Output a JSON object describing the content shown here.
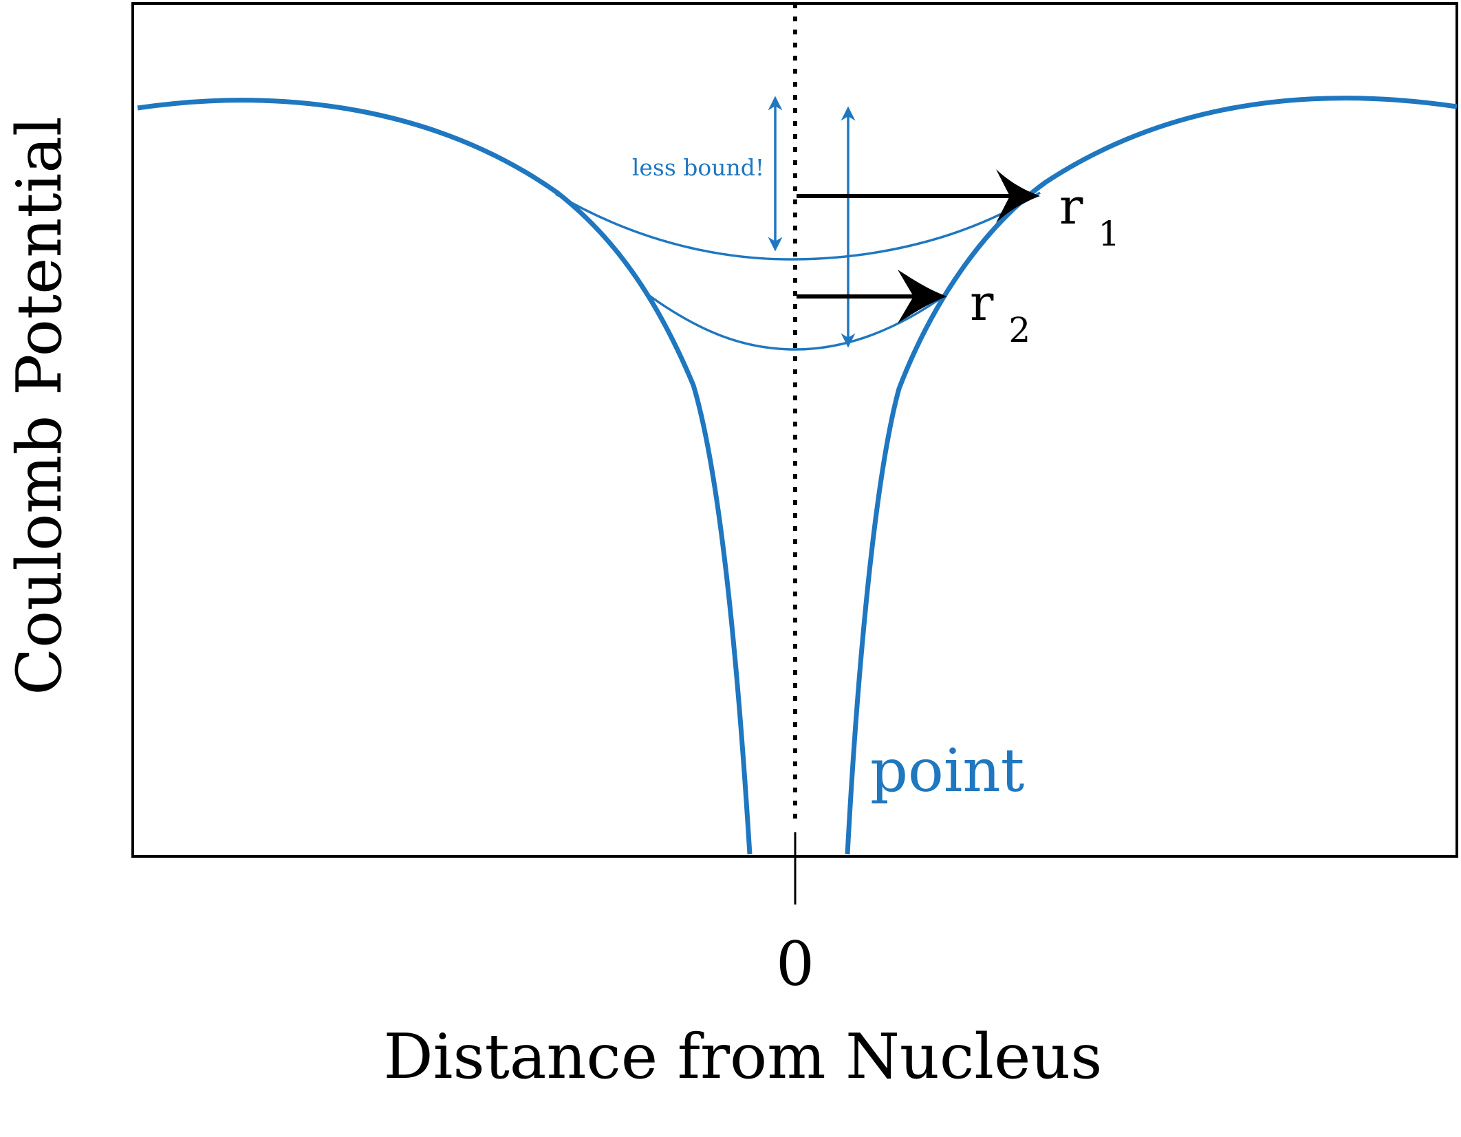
{
  "diagram": {
    "y_axis_label": "Coulomb Potential",
    "x_axis_label": "Distance from Nucleus",
    "x_tick_label": "0",
    "curve_label": "point",
    "annotation": "less bound!",
    "radius_labels": [
      {
        "base": "r",
        "sub": "1"
      },
      {
        "base": "r",
        "sub": "2"
      }
    ],
    "colors": {
      "curve": "#1f77c0",
      "axes": "#000000",
      "arrows": "#000000"
    }
  }
}
